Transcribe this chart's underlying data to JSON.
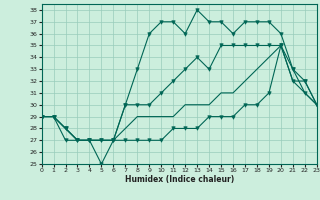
{
  "xlabel": "Humidex (Indice chaleur)",
  "background_color": "#cceedd",
  "line_color": "#006655",
  "grid_color": "#99ccbb",
  "xlim": [
    0,
    23
  ],
  "ylim": [
    25,
    38.5
  ],
  "yticks": [
    25,
    26,
    27,
    28,
    29,
    30,
    31,
    32,
    33,
    34,
    35,
    36,
    37,
    38
  ],
  "xticks": [
    0,
    1,
    2,
    3,
    4,
    5,
    6,
    7,
    8,
    9,
    10,
    11,
    12,
    13,
    14,
    15,
    16,
    17,
    18,
    19,
    20,
    21,
    22,
    23
  ],
  "series_top": [
    29,
    29,
    28,
    27,
    27,
    27,
    27,
    30,
    33,
    36,
    37,
    37,
    36,
    38,
    37,
    37,
    36,
    37,
    37,
    37,
    36,
    33,
    32,
    30
  ],
  "series_mid1": [
    29,
    29,
    28,
    27,
    27,
    27,
    27,
    30,
    30,
    30,
    31,
    32,
    33,
    34,
    33,
    35,
    35,
    35,
    35,
    35,
    35,
    33,
    31,
    30
  ],
  "series_mid2": [
    29,
    29,
    28,
    27,
    27,
    27,
    27,
    28,
    29,
    29,
    29,
    29,
    30,
    30,
    30,
    31,
    31,
    32,
    33,
    34,
    35,
    32,
    31,
    30
  ],
  "series_bot": [
    29,
    29,
    27,
    27,
    27,
    25,
    27,
    27,
    27,
    27,
    27,
    28,
    28,
    28,
    29,
    29,
    29,
    30,
    30,
    31,
    35,
    32,
    32,
    30
  ]
}
